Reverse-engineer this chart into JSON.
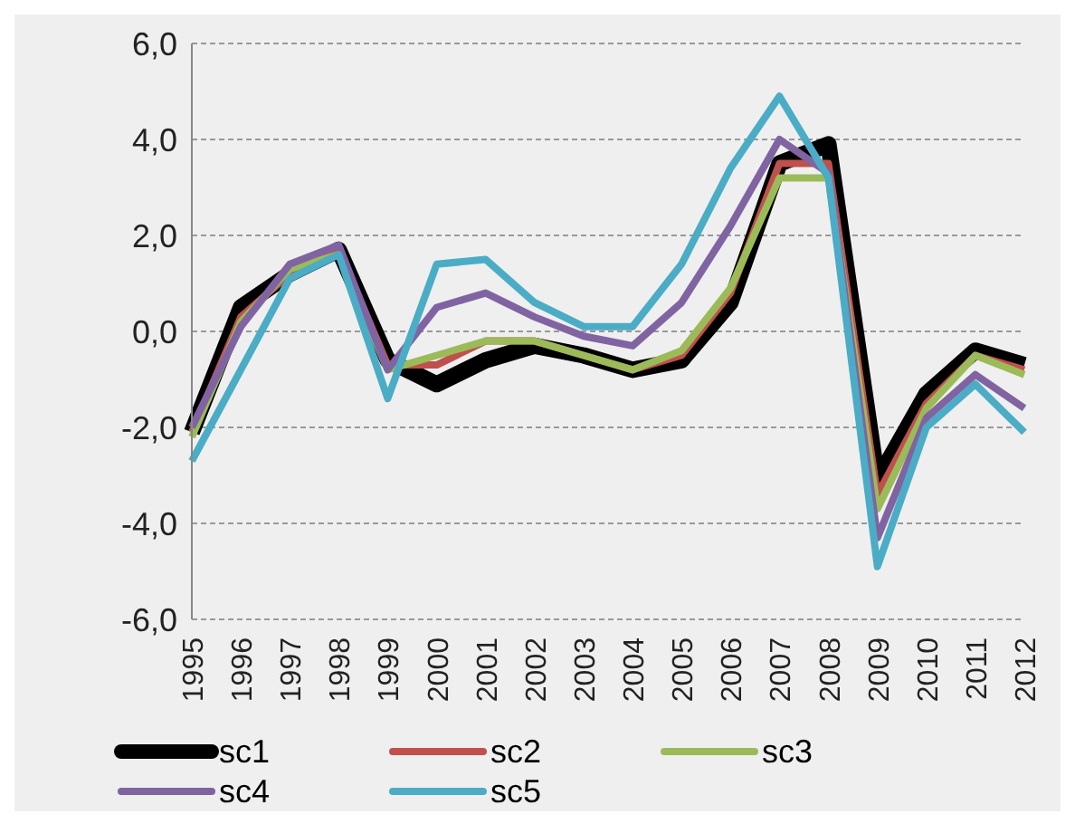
{
  "chart_data": {
    "type": "line",
    "categories": [
      "1995",
      "1996",
      "1997",
      "1998",
      "1999",
      "2000",
      "2001",
      "2002",
      "2003",
      "2004",
      "2005",
      "2006",
      "2007",
      "2008",
      "2009",
      "2010",
      "2011",
      "2012"
    ],
    "series": [
      {
        "name": "sc1",
        "color": "#000000",
        "values": [
          -2.1,
          0.5,
          1.2,
          1.7,
          -0.6,
          -1.1,
          -0.6,
          -0.3,
          -0.5,
          -0.8,
          -0.6,
          0.6,
          3.5,
          3.9,
          -3.1,
          -1.3,
          -0.4,
          -0.7
        ]
      },
      {
        "name": "sc2",
        "color": "#c0504d",
        "values": [
          -2.1,
          0.3,
          1.2,
          1.7,
          -0.7,
          -0.7,
          -0.2,
          -0.2,
          -0.5,
          -0.8,
          -0.5,
          0.8,
          3.5,
          3.5,
          -3.4,
          -1.5,
          -0.5,
          -0.8
        ]
      },
      {
        "name": "sc3",
        "color": "#9bbb59",
        "values": [
          -2.2,
          0.2,
          1.3,
          1.6,
          -0.8,
          -0.5,
          -0.2,
          -0.2,
          -0.5,
          -0.8,
          -0.4,
          0.9,
          3.2,
          3.2,
          -3.7,
          -1.6,
          -0.5,
          -0.9
        ]
      },
      {
        "name": "sc4",
        "color": "#8064a2",
        "values": [
          -2.0,
          0.1,
          1.4,
          1.8,
          -0.8,
          0.5,
          0.8,
          0.3,
          -0.1,
          -0.3,
          0.6,
          2.2,
          4.0,
          3.3,
          -4.3,
          -1.8,
          -0.9,
          -1.6
        ]
      },
      {
        "name": "sc5",
        "color": "#4bacc6",
        "values": [
          -2.7,
          -0.8,
          1.1,
          1.6,
          -1.4,
          1.4,
          1.5,
          0.6,
          0.1,
          0.1,
          1.4,
          3.4,
          4.9,
          3.2,
          -4.9,
          -2.0,
          -1.1,
          -2.1
        ]
      }
    ],
    "ylim": [
      -6,
      6
    ],
    "yticks": [
      {
        "value": -6,
        "label": "-6,0"
      },
      {
        "value": -4,
        "label": "-4,0"
      },
      {
        "value": -2,
        "label": "-2,0"
      },
      {
        "value": 0,
        "label": "0,0"
      },
      {
        "value": 2,
        "label": "2,0"
      },
      {
        "value": 4,
        "label": "4,0"
      },
      {
        "value": 6,
        "label": "6,0"
      }
    ],
    "grid": "y",
    "legend": "bottom",
    "marker": "none",
    "line_style": "solid"
  }
}
